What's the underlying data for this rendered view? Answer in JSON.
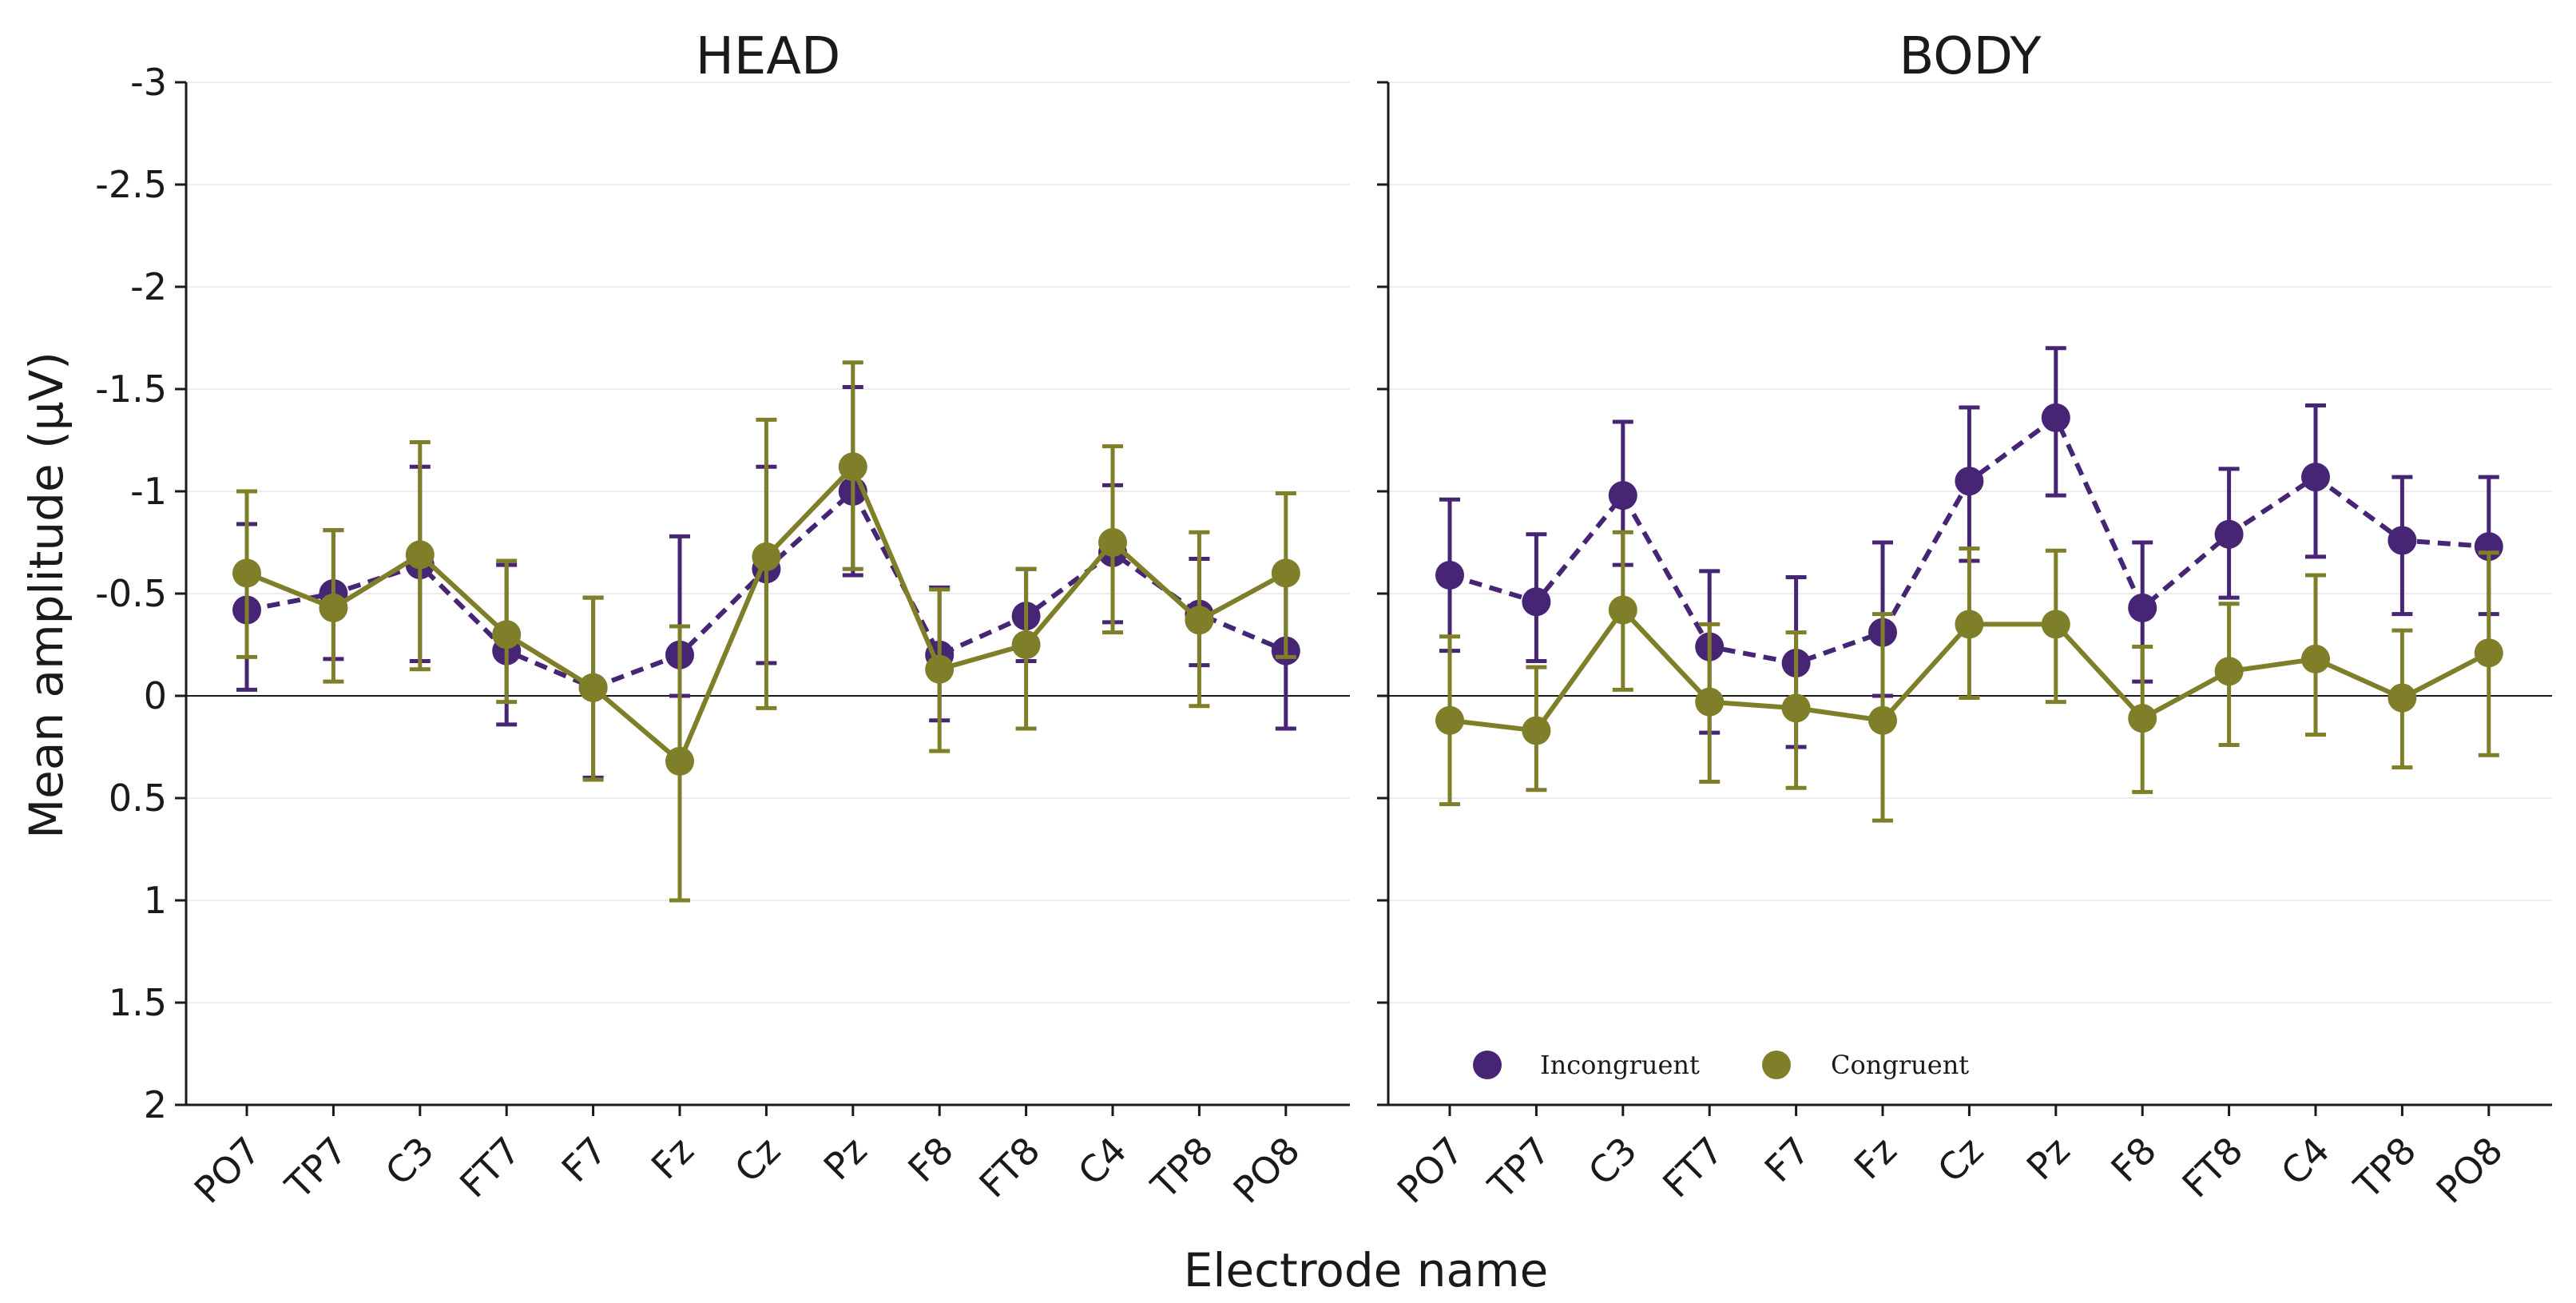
{
  "chart_data": {
    "type": "line",
    "xlabel": "Electrode name",
    "ylabel": "Mean amplitude (μV)",
    "ylim": [
      2,
      -3
    ],
    "y_inverted": true,
    "yticks": [
      -3,
      -2.5,
      -2,
      -1.5,
      -1,
      -0.5,
      0,
      0.5,
      1,
      1.5,
      2
    ],
    "ytick_labels": [
      "-3",
      "-2.5",
      "-2",
      "-1.5",
      "-1",
      "-0.5",
      "0",
      "0.5",
      "1",
      "1.5",
      "2"
    ],
    "grid": "horizontal",
    "legend_placement": "lower-left of right panel",
    "categories": [
      "PO7",
      "TP7",
      "C3",
      "FT7",
      "F7",
      "Fz",
      "Cz",
      "Pz",
      "F8",
      "FT8",
      "C4",
      "TP8",
      "PO8"
    ],
    "colors": {
      "Incongruent": "#472575",
      "Congruent": "#7f7f2a"
    },
    "legend": [
      "Incongruent",
      "Congruent"
    ],
    "panels": [
      {
        "title": "HEAD",
        "series": [
          {
            "name": "Incongruent",
            "style": "dashed",
            "values": [
              -0.42,
              -0.5,
              -0.64,
              -0.22,
              -0.04,
              -0.2,
              -0.62,
              -1.0,
              -0.2,
              -0.39,
              -0.7,
              -0.4,
              -0.22
            ],
            "err_low": [
              -0.03,
              -0.18,
              -0.17,
              0.14,
              0.4,
              -0.78,
              -0.16,
              -0.59,
              0.12,
              -0.17,
              -0.36,
              -0.15,
              0.16
            ],
            "err_high": [
              -0.84,
              -0.81,
              -1.12,
              -0.64,
              -0.48,
              0.0,
              -1.12,
              -1.51,
              -0.53,
              -0.62,
              -1.03,
              -0.67,
              -0.6
            ]
          },
          {
            "name": "Congruent",
            "style": "solid",
            "values": [
              -0.6,
              -0.43,
              -0.69,
              -0.3,
              -0.04,
              0.32,
              -0.68,
              -1.12,
              -0.13,
              -0.25,
              -0.75,
              -0.37,
              -0.6
            ],
            "err_low": [
              -0.19,
              -0.07,
              -0.13,
              0.03,
              0.41,
              1.0,
              0.06,
              -0.62,
              0.27,
              0.16,
              -0.31,
              0.05,
              -0.19
            ],
            "err_high": [
              -1.0,
              -0.81,
              -1.24,
              -0.66,
              -0.48,
              -0.34,
              -1.35,
              -1.63,
              -0.52,
              -0.62,
              -1.22,
              -0.8,
              -0.99
            ]
          }
        ]
      },
      {
        "title": "BODY",
        "series": [
          {
            "name": "Incongruent",
            "style": "dashed",
            "values": [
              -0.59,
              -0.46,
              -0.98,
              -0.24,
              -0.16,
              -0.31,
              -1.05,
              -1.36,
              -0.43,
              -0.79,
              -1.07,
              -0.76,
              -0.73
            ],
            "err_low": [
              -0.22,
              -0.17,
              -0.64,
              0.18,
              0.25,
              0.0,
              -0.66,
              -0.98,
              -0.07,
              -0.48,
              -0.68,
              -0.4,
              -0.4
            ],
            "err_high": [
              -0.96,
              -0.79,
              -1.34,
              -0.61,
              -0.58,
              -0.75,
              -1.41,
              -1.7,
              -0.75,
              -1.11,
              -1.42,
              -1.07,
              -1.07
            ]
          },
          {
            "name": "Congruent",
            "style": "solid",
            "values": [
              0.12,
              0.17,
              -0.42,
              0.03,
              0.06,
              0.12,
              -0.35,
              -0.35,
              0.11,
              -0.12,
              -0.18,
              0.01,
              -0.21
            ],
            "err_low": [
              0.53,
              0.46,
              -0.03,
              0.42,
              0.45,
              0.61,
              0.01,
              0.03,
              0.47,
              0.24,
              0.19,
              0.35,
              0.29
            ],
            "err_high": [
              -0.29,
              -0.14,
              -0.8,
              -0.35,
              -0.31,
              -0.4,
              -0.72,
              -0.71,
              -0.24,
              -0.45,
              -0.59,
              -0.32,
              -0.7
            ]
          }
        ]
      }
    ]
  }
}
